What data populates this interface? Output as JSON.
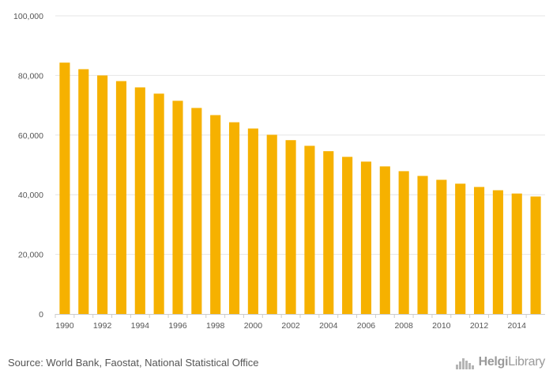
{
  "chart_data": {
    "type": "bar",
    "categories": [
      "1990",
      "1991",
      "1992",
      "1993",
      "1994",
      "1995",
      "1996",
      "1997",
      "1998",
      "1999",
      "2000",
      "2001",
      "2002",
      "2003",
      "2004",
      "2005",
      "2006",
      "2007",
      "2008",
      "2009",
      "2010",
      "2011",
      "2012",
      "2013",
      "2014",
      "2015"
    ],
    "values": [
      84300,
      82100,
      80000,
      78100,
      76000,
      73900,
      71500,
      69100,
      66700,
      64300,
      62200,
      60100,
      58300,
      56400,
      54600,
      52700,
      51100,
      49500,
      47900,
      46300,
      45000,
      43700,
      42600,
      41500,
      40400,
      39400
    ],
    "x_tick_labels": [
      "1990",
      "1992",
      "1994",
      "1996",
      "1998",
      "2000",
      "2002",
      "2004",
      "2006",
      "2008",
      "2010",
      "2012",
      "2014"
    ],
    "y_tick_labels": [
      "0",
      "20,000",
      "40,000",
      "60,000",
      "80,000",
      "100,000"
    ],
    "y_ticks": [
      0,
      20000,
      40000,
      60000,
      80000,
      100000
    ],
    "ylim": [
      0,
      100000
    ],
    "title": "",
    "xlabel": "",
    "ylabel": "",
    "grid": true,
    "bar_color": "#f6b100",
    "grid_color": "#e6e6e6"
  },
  "footer": {
    "source": "Source: World Bank, Faostat, National Statistical Office",
    "logo_prefix": "Helgi",
    "logo_suffix": "Library"
  },
  "icons": {
    "logo": "helgi-library-logo-icon"
  }
}
